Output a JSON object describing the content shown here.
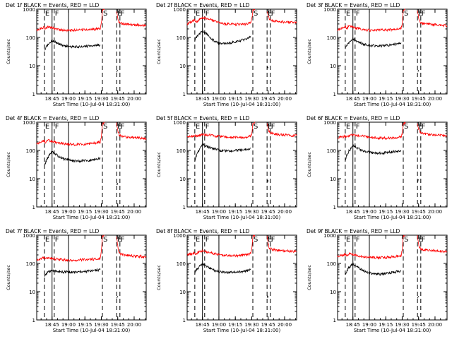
{
  "chart_data": {
    "type": "line",
    "xlabel": "Start Time (10-Jul-04 18:31:00)",
    "ylabel": "Counts/sec",
    "x_ticks": [
      "18:45",
      "19:00",
      "19:15",
      "19:30",
      "19:45",
      "20:00"
    ],
    "x_tick_minutes": [
      14,
      29,
      44,
      59,
      74,
      89
    ],
    "x_range_minutes_after_start": [
      0,
      100
    ],
    "y_scale": "log",
    "y_range": [
      1,
      1000
    ],
    "y_ticks": [
      "1",
      "10",
      "100",
      "1000"
    ],
    "time_markers": [
      {
        "label": "E",
        "minute": 7,
        "style": "dashed"
      },
      {
        "label": "",
        "minute": 14,
        "style": "solid"
      },
      {
        "label": "F",
        "minute": 16,
        "style": "dashed"
      },
      {
        "label": "",
        "minute": 29,
        "style": "solid"
      },
      {
        "label": "S",
        "minute": 60,
        "style": "dashed"
      },
      {
        "label": "E",
        "minute": 73,
        "style": "dashed"
      },
      {
        "label": "F",
        "minute": 76,
        "style": "dashed"
      }
    ],
    "series_colors": {
      "events": "#000000",
      "lld": "#ff0000"
    },
    "panels": [
      {
        "title": "Det 1f BLACK = Events, RED = LLD",
        "red": {
          "x": [
            0,
            5,
            7,
            8,
            10,
            14,
            20,
            25,
            30,
            35,
            40,
            45,
            50,
            55,
            58,
            59,
            60,
            62
          ],
          "y": [
            180,
            210,
            230,
            200,
            240,
            220,
            190,
            180,
            175,
            180,
            185,
            185,
            190,
            200,
            210,
            300,
            900,
            1000
          ]
        },
        "black": {
          "x": [
            7,
            8,
            10,
            14,
            18,
            22,
            26,
            30,
            35,
            40,
            45,
            50,
            55,
            58
          ],
          "y": [
            35,
            40,
            55,
            80,
            65,
            55,
            50,
            48,
            46,
            46,
            48,
            50,
            52,
            55
          ]
        },
        "red2": {
          "x": [
            73,
            74,
            75,
            77,
            80,
            85,
            90,
            95,
            100
          ],
          "y": [
            900,
            500,
            360,
            320,
            300,
            290,
            280,
            270,
            260
          ]
        },
        "black2": {
          "x": [
            73,
            74
          ],
          "y": [
            6,
            7
          ]
        }
      },
      {
        "title": "Det 2f BLACK = Events, RED = LLD",
        "red": {
          "x": [
            0,
            5,
            7,
            8,
            10,
            14,
            20,
            25,
            30,
            35,
            40,
            45,
            50,
            55,
            58,
            59,
            60,
            62
          ],
          "y": [
            300,
            380,
            420,
            330,
            400,
            500,
            450,
            380,
            320,
            300,
            300,
            290,
            290,
            300,
            320,
            420,
            900,
            1000
          ]
        },
        "black": {
          "x": [
            7,
            8,
            10,
            14,
            18,
            22,
            26,
            30,
            35,
            40,
            45,
            50,
            55,
            58
          ],
          "y": [
            80,
            95,
            120,
            170,
            130,
            90,
            70,
            60,
            60,
            65,
            70,
            80,
            90,
            110
          ]
        },
        "red2": {
          "x": [
            73,
            74,
            75,
            77,
            80,
            85,
            90,
            95,
            100
          ],
          "y": [
            900,
            600,
            450,
            400,
            380,
            360,
            350,
            340,
            330
          ]
        },
        "black2": {
          "x": [
            73,
            74
          ],
          "y": [
            8,
            9
          ]
        }
      },
      {
        "title": "Det 3f BLACK = Events, RED = LLD",
        "red": {
          "x": [
            0,
            5,
            7,
            8,
            10,
            14,
            20,
            25,
            30,
            35,
            40,
            45,
            50,
            55,
            58,
            59,
            60,
            62
          ],
          "y": [
            180,
            220,
            240,
            200,
            250,
            230,
            200,
            185,
            180,
            180,
            185,
            185,
            190,
            200,
            210,
            300,
            900,
            1000
          ]
        },
        "black": {
          "x": [
            7,
            8,
            10,
            14,
            18,
            22,
            26,
            30,
            35,
            40,
            45,
            50,
            55,
            58
          ],
          "y": [
            40,
            50,
            65,
            90,
            70,
            60,
            55,
            52,
            50,
            50,
            52,
            55,
            60,
            65
          ]
        },
        "red2": {
          "x": [
            73,
            74,
            75,
            77,
            80,
            85,
            90,
            95,
            100
          ],
          "y": [
            900,
            500,
            360,
            320,
            300,
            290,
            280,
            270,
            260
          ]
        },
        "black2": {
          "x": [
            73,
            74
          ],
          "y": [
            6,
            7
          ]
        }
      },
      {
        "title": "Det 4f BLACK = Events, RED = LLD",
        "red": {
          "x": [
            0,
            5,
            7,
            8,
            10,
            14,
            20,
            25,
            30,
            35,
            40,
            45,
            50,
            55,
            58,
            59,
            60,
            62
          ],
          "y": [
            170,
            200,
            220,
            190,
            230,
            210,
            180,
            170,
            165,
            160,
            165,
            170,
            175,
            185,
            200,
            300,
            900,
            1000
          ]
        },
        "black": {
          "x": [
            7,
            8,
            10,
            14,
            18,
            22,
            26,
            30,
            35,
            40,
            45,
            50,
            55,
            58
          ],
          "y": [
            30,
            35,
            55,
            90,
            70,
            55,
            48,
            45,
            42,
            42,
            44,
            46,
            48,
            52
          ]
        },
        "red2": {
          "x": [
            73,
            74,
            75,
            77,
            80,
            85,
            90,
            95,
            100
          ],
          "y": [
            900,
            500,
            360,
            320,
            300,
            290,
            280,
            270,
            260
          ]
        },
        "black2": {
          "x": [
            73,
            74
          ],
          "y": [
            6,
            7
          ]
        }
      },
      {
        "title": "Det 5f BLACK = Events, RED = LLD",
        "red": {
          "x": [
            0,
            5,
            7,
            8,
            10,
            14,
            20,
            25,
            30,
            35,
            40,
            45,
            50,
            55,
            58,
            59,
            60,
            62
          ],
          "y": [
            300,
            320,
            340,
            300,
            330,
            360,
            350,
            330,
            310,
            300,
            290,
            290,
            290,
            300,
            320,
            400,
            900,
            1000
          ]
        },
        "black": {
          "x": [
            7,
            8,
            10,
            14,
            18,
            22,
            26,
            30,
            35,
            40,
            45,
            50,
            55,
            58
          ],
          "y": [
            40,
            60,
            90,
            160,
            140,
            120,
            110,
            100,
            95,
            95,
            100,
            105,
            110,
            120
          ]
        },
        "red2": {
          "x": [
            73,
            74,
            75,
            77,
            80,
            85,
            90,
            95,
            100
          ],
          "y": [
            900,
            600,
            450,
            400,
            380,
            360,
            350,
            340,
            330
          ]
        },
        "black2": {
          "x": [
            73,
            74
          ],
          "y": [
            8,
            9
          ]
        }
      },
      {
        "title": "Det 6f BLACK = Events, RED = LLD",
        "red": {
          "x": [
            0,
            5,
            7,
            8,
            10,
            14,
            20,
            25,
            30,
            35,
            40,
            45,
            50,
            55,
            58,
            59,
            60,
            62
          ],
          "y": [
            280,
            300,
            320,
            290,
            320,
            350,
            330,
            310,
            290,
            280,
            275,
            275,
            280,
            290,
            300,
            380,
            900,
            1000
          ]
        },
        "black": {
          "x": [
            7,
            8,
            10,
            14,
            18,
            22,
            26,
            30,
            35,
            40,
            45,
            50,
            55,
            58
          ],
          "y": [
            45,
            60,
            90,
            150,
            120,
            100,
            90,
            85,
            80,
            80,
            85,
            90,
            95,
            100
          ]
        },
        "red2": {
          "x": [
            73,
            74,
            75,
            77,
            80,
            85,
            90,
            95,
            100
          ],
          "y": [
            900,
            600,
            450,
            400,
            380,
            360,
            350,
            340,
            330
          ]
        },
        "black2": {
          "x": [
            73,
            74
          ],
          "y": [
            8,
            9
          ]
        }
      },
      {
        "title": "Det 7f BLACK = Events, RED = LLD",
        "red": {
          "x": [
            0,
            5,
            7,
            8,
            10,
            14,
            20,
            25,
            30,
            35,
            40,
            45,
            50,
            55,
            58,
            59,
            60,
            62
          ],
          "y": [
            130,
            150,
            170,
            140,
            160,
            150,
            140,
            135,
            130,
            130,
            135,
            135,
            140,
            145,
            150,
            250,
            900,
            1000
          ]
        },
        "black": {
          "x": [
            7,
            8,
            10,
            14,
            18,
            22,
            26,
            30,
            35,
            40,
            45,
            50,
            55,
            58
          ],
          "y": [
            35,
            40,
            50,
            55,
            52,
            50,
            50,
            50,
            50,
            52,
            52,
            55,
            58,
            60
          ]
        },
        "red2": {
          "x": [
            73,
            74,
            75,
            77,
            80,
            85,
            90,
            95,
            100
          ],
          "y": [
            900,
            400,
            250,
            210,
            200,
            190,
            180,
            175,
            170
          ]
        },
        "black2": {
          "x": [
            73,
            74
          ],
          "y": [
            6,
            7
          ]
        }
      },
      {
        "title": "Det 8f BLACK = Events, RED = LLD",
        "red": {
          "x": [
            0,
            5,
            7,
            8,
            10,
            14,
            20,
            25,
            30,
            35,
            40,
            45,
            50,
            55,
            58,
            59,
            60,
            62
          ],
          "y": [
            200,
            220,
            240,
            200,
            260,
            280,
            250,
            220,
            200,
            190,
            190,
            190,
            195,
            205,
            220,
            300,
            900,
            1000
          ]
        },
        "black": {
          "x": [
            7,
            8,
            10,
            14,
            18,
            22,
            26,
            30,
            35,
            40,
            45,
            50,
            55,
            58
          ],
          "y": [
            45,
            55,
            70,
            100,
            80,
            65,
            55,
            50,
            48,
            48,
            50,
            52,
            55,
            60
          ]
        },
        "red2": {
          "x": [
            73,
            74,
            75,
            77,
            80,
            85,
            90,
            95,
            100
          ],
          "y": [
            900,
            500,
            360,
            320,
            300,
            290,
            280,
            270,
            260
          ]
        },
        "black2": {
          "x": [
            73,
            74
          ],
          "y": [
            6,
            7
          ]
        }
      },
      {
        "title": "Det 9f BLACK = Events, RED = LLD",
        "red": {
          "x": [
            0,
            5,
            7,
            8,
            10,
            14,
            20,
            25,
            30,
            35,
            40,
            45,
            50,
            55,
            58,
            59,
            60,
            62
          ],
          "y": [
            170,
            200,
            220,
            180,
            220,
            210,
            180,
            170,
            165,
            160,
            160,
            165,
            170,
            180,
            190,
            280,
            900,
            1000
          ]
        },
        "black": {
          "x": [
            7,
            8,
            10,
            14,
            18,
            22,
            26,
            30,
            35,
            40,
            45,
            50,
            55,
            58
          ],
          "y": [
            40,
            50,
            70,
            100,
            75,
            60,
            50,
            45,
            42,
            42,
            45,
            48,
            52,
            55
          ]
        },
        "red2": {
          "x": [
            73,
            74,
            75,
            77,
            80,
            85,
            90,
            95,
            100
          ],
          "y": [
            900,
            500,
            360,
            320,
            300,
            290,
            280,
            270,
            260
          ]
        },
        "black2": {
          "x": [
            73,
            74
          ],
          "y": [
            6,
            7
          ]
        }
      }
    ]
  }
}
